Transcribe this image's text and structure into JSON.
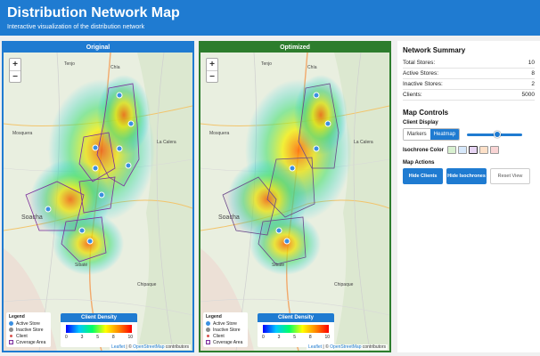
{
  "header": {
    "title": "Distribution Network Map",
    "subtitle": "Interactive visualization of the distribution network"
  },
  "panels": [
    {
      "label": "Original",
      "accent": "#1f7bd1",
      "places": [
        "Tenjo",
        "Chía",
        "Mosquera",
        "Soacha",
        "Sibaté",
        "La Calera",
        "Chipaque"
      ],
      "stores": [
        {
          "x": 130,
          "y": 48
        },
        {
          "x": 143,
          "y": 80
        },
        {
          "x": 103,
          "y": 107
        },
        {
          "x": 130,
          "y": 108
        },
        {
          "x": 103,
          "y": 130
        },
        {
          "x": 140,
          "y": 127
        },
        {
          "x": 110,
          "y": 160
        },
        {
          "x": 50,
          "y": 176
        },
        {
          "x": 88,
          "y": 200
        },
        {
          "x": 97,
          "y": 212
        }
      ]
    },
    {
      "label": "Optimized",
      "accent": "#2d7d2d",
      "places": [
        "Tenjo",
        "Chía",
        "Mosquera",
        "Soacha",
        "Sibaté",
        "La Calera",
        "Chipaque"
      ],
      "stores": [
        {
          "x": 130,
          "y": 48
        },
        {
          "x": 143,
          "y": 80
        },
        {
          "x": 130,
          "y": 108
        },
        {
          "x": 103,
          "y": 130
        },
        {
          "x": 88,
          "y": 200
        },
        {
          "x": 97,
          "y": 212
        }
      ]
    }
  ],
  "map_ui": {
    "zoom_in": "+",
    "zoom_out": "−",
    "legend_title": "Legend",
    "legend_items": [
      {
        "label": "Active Store",
        "color": "#3b8fe0"
      },
      {
        "label": "Inactive Store",
        "color": "#8c8c8c"
      },
      {
        "label": "Client",
        "color": "#d9534f"
      },
      {
        "label": "Coverage Area",
        "color": "#7b2f9c"
      }
    ],
    "density_title": "Client Density",
    "density_ticks": [
      "0",
      "3",
      "5",
      "8",
      "10"
    ],
    "attribution_leaflet": "Leaflet",
    "attribution_sep": " | © ",
    "attribution_osm": "OpenStreetMap",
    "attribution_tail": " contributors"
  },
  "summary": {
    "title": "Network Summary",
    "rows": [
      {
        "label": "Total Stores:",
        "value": "10"
      },
      {
        "label": "Active Stores:",
        "value": "8"
      },
      {
        "label": "Inactive Stores:",
        "value": "2"
      },
      {
        "label": "Clients:",
        "value": "5000"
      }
    ]
  },
  "controls": {
    "title": "Map Controls",
    "client_display_label": "Client Display",
    "markers_label": "Markers",
    "heatmap_label": "Heatmap",
    "slider_value": 0.55,
    "isochrone_label": "Isochrone Color",
    "isochrone_colors": [
      "#d8f0d0",
      "#d6e8fb",
      "#e6d4f3",
      "#fde0c8",
      "#f9d4d4"
    ],
    "isochrone_selected": 2,
    "actions_label": "Map Actions",
    "hide_clients_label": "Hide Clients",
    "hide_isochrones_label": "Hide Isochrones",
    "reset_view_label": "Reset View"
  }
}
